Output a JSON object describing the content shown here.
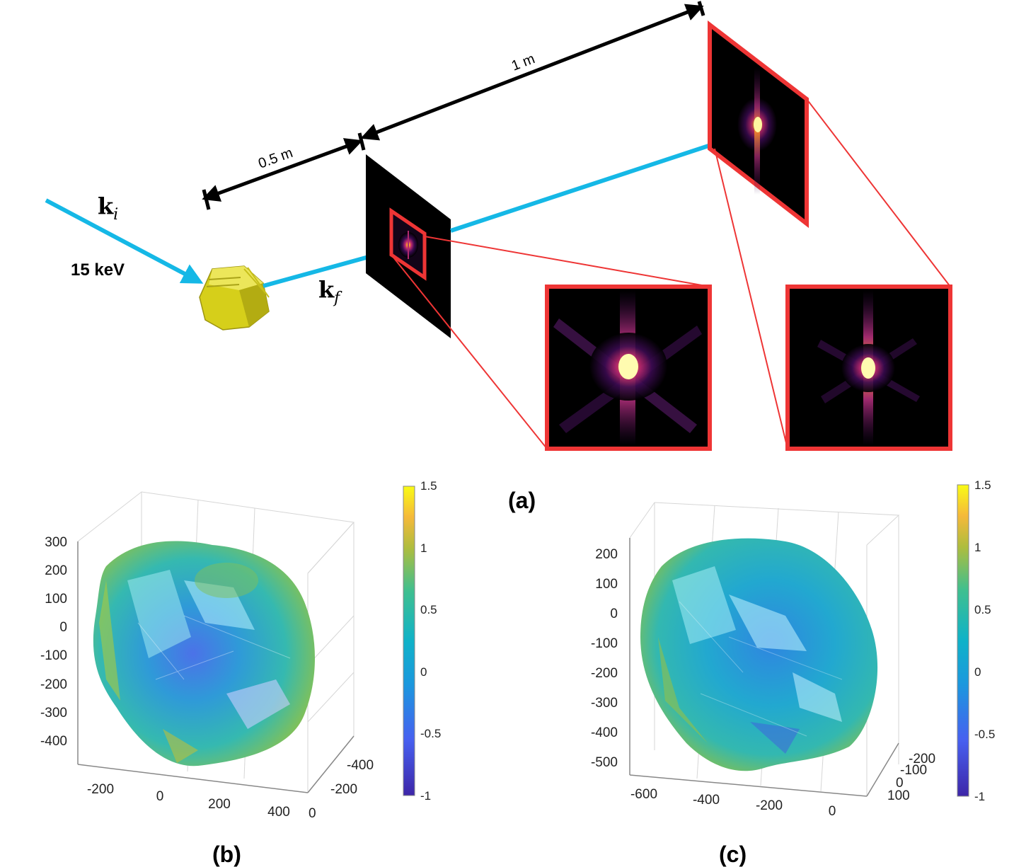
{
  "schematic": {
    "incident_label": "k",
    "incident_sub": "i",
    "scattered_label": "k",
    "scattered_sub": "f",
    "energy_label": "15 keV",
    "dist_near": "0.5 m",
    "dist_far": "1 m",
    "panel_label": "(a)"
  },
  "plot_b": {
    "panel_label": "(b)",
    "z_ticks": [
      "300",
      "200",
      "100",
      "0",
      "-100",
      "-200",
      "-300",
      "-400"
    ],
    "x_ticks": [
      "-200",
      "0",
      "200",
      "400"
    ],
    "y_ticks": [
      "-400",
      "-200",
      "0"
    ],
    "colorbar_ticks": [
      "1.5",
      "1",
      "0.5",
      "0",
      "-0.5",
      "-1"
    ]
  },
  "plot_c": {
    "panel_label": "(c)",
    "z_ticks": [
      "200",
      "100",
      "0",
      "-100",
      "-200",
      "-300",
      "-400",
      "-500"
    ],
    "x_ticks": [
      "-600",
      "-400",
      "-200",
      "0"
    ],
    "y_ticks": [
      "-200",
      "-100",
      "0",
      "100"
    ],
    "colorbar_ticks": [
      "1.5",
      "1",
      "0.5",
      "0",
      "-0.5",
      "-1"
    ]
  },
  "colors": {
    "beam": "#15b8e6",
    "frame": "#ee3535",
    "crystal": "#d8d018",
    "detector": "#000000"
  }
}
